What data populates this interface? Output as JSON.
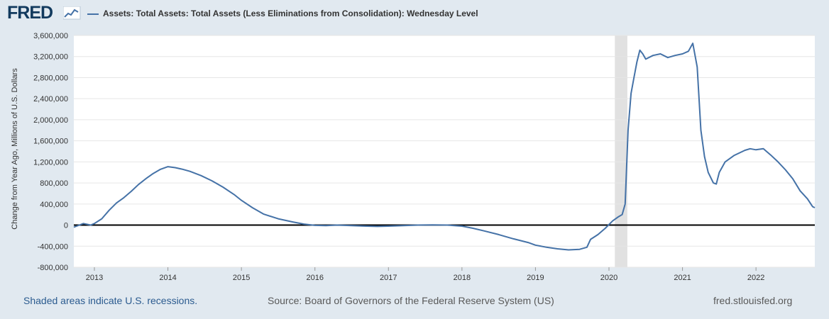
{
  "header": {
    "logo_text": "FRED",
    "logo_icon": "trend-line-icon",
    "legend_label": "Assets: Total Assets: Total Assets (Less Eliminations from Consolidation): Wednesday Level"
  },
  "footer": {
    "recession_note": "Shaded areas indicate U.S. recessions.",
    "source": "Source: Board of Governors of the Federal Reserve System (US)",
    "url": "fred.stlouisfed.org"
  },
  "colors": {
    "series": "#4572a7",
    "background": "#e1e9f0",
    "plot": "#ffffff",
    "recession": "#e1e1e1",
    "gridline": "#e6e6e6"
  },
  "chart_data": {
    "type": "line",
    "title": "Assets: Total Assets: Total Assets (Less Eliminations from Consolidation): Wednesday Level",
    "ylabel": "Change from Year Ago, Millions of U.S. Dollars",
    "xlabel": "",
    "xlim": [
      2012.72,
      2022.8
    ],
    "ylim": [
      -800000,
      3600000
    ],
    "yticks": [
      -800000,
      -400000,
      0,
      400000,
      800000,
      1200000,
      1600000,
      2000000,
      2400000,
      2800000,
      3200000,
      3600000
    ],
    "ytick_labels": [
      "-800,000",
      "-400,000",
      "0",
      "400,000",
      "800,000",
      "1,200,000",
      "1,600,000",
      "2,000,000",
      "2,400,000",
      "2,800,000",
      "3,200,000",
      "3,600,000"
    ],
    "xticks": [
      2013,
      2014,
      2015,
      2016,
      2017,
      2018,
      2019,
      2020,
      2021,
      2022
    ],
    "xtick_labels": [
      "2013",
      "2014",
      "2015",
      "2016",
      "2017",
      "2018",
      "2019",
      "2020",
      "2021",
      "2022"
    ],
    "recessions": [
      [
        2020.08,
        2020.25
      ]
    ],
    "zero_line": 0,
    "series": [
      {
        "name": "Assets: Total Assets: Total Assets (Less Eliminations from Consolidation): Wednesday Level",
        "points": [
          [
            2012.72,
            -40000
          ],
          [
            2012.85,
            30000
          ],
          [
            2012.95,
            0
          ],
          [
            2013.0,
            30000
          ],
          [
            2013.1,
            120000
          ],
          [
            2013.2,
            280000
          ],
          [
            2013.3,
            420000
          ],
          [
            2013.4,
            520000
          ],
          [
            2013.5,
            640000
          ],
          [
            2013.6,
            770000
          ],
          [
            2013.7,
            880000
          ],
          [
            2013.8,
            980000
          ],
          [
            2013.9,
            1060000
          ],
          [
            2014.0,
            1110000
          ],
          [
            2014.1,
            1090000
          ],
          [
            2014.2,
            1060000
          ],
          [
            2014.3,
            1020000
          ],
          [
            2014.45,
            940000
          ],
          [
            2014.6,
            840000
          ],
          [
            2014.75,
            720000
          ],
          [
            2014.9,
            580000
          ],
          [
            2015.0,
            470000
          ],
          [
            2015.15,
            330000
          ],
          [
            2015.3,
            210000
          ],
          [
            2015.5,
            120000
          ],
          [
            2015.7,
            60000
          ],
          [
            2015.85,
            20000
          ],
          [
            2016.0,
            -5000
          ],
          [
            2016.15,
            -10000
          ],
          [
            2016.3,
            0
          ],
          [
            2016.5,
            -10000
          ],
          [
            2016.7,
            -20000
          ],
          [
            2016.85,
            -25000
          ],
          [
            2017.0,
            -20000
          ],
          [
            2017.2,
            -10000
          ],
          [
            2017.4,
            0
          ],
          [
            2017.6,
            5000
          ],
          [
            2017.8,
            0
          ],
          [
            2018.0,
            -20000
          ],
          [
            2018.15,
            -60000
          ],
          [
            2018.3,
            -110000
          ],
          [
            2018.5,
            -180000
          ],
          [
            2018.7,
            -260000
          ],
          [
            2018.9,
            -330000
          ],
          [
            2019.0,
            -380000
          ],
          [
            2019.15,
            -420000
          ],
          [
            2019.3,
            -450000
          ],
          [
            2019.45,
            -470000
          ],
          [
            2019.6,
            -460000
          ],
          [
            2019.7,
            -420000
          ],
          [
            2019.75,
            -270000
          ],
          [
            2019.85,
            -180000
          ],
          [
            2019.95,
            -60000
          ],
          [
            2020.05,
            80000
          ],
          [
            2020.12,
            150000
          ],
          [
            2020.18,
            200000
          ],
          [
            2020.22,
            400000
          ],
          [
            2020.26,
            1800000
          ],
          [
            2020.3,
            2500000
          ],
          [
            2020.34,
            2800000
          ],
          [
            2020.38,
            3100000
          ],
          [
            2020.42,
            3320000
          ],
          [
            2020.46,
            3250000
          ],
          [
            2020.5,
            3150000
          ],
          [
            2020.6,
            3220000
          ],
          [
            2020.7,
            3250000
          ],
          [
            2020.8,
            3180000
          ],
          [
            2020.9,
            3220000
          ],
          [
            2021.0,
            3250000
          ],
          [
            2021.08,
            3300000
          ],
          [
            2021.14,
            3450000
          ],
          [
            2021.2,
            3000000
          ],
          [
            2021.25,
            1800000
          ],
          [
            2021.3,
            1300000
          ],
          [
            2021.35,
            1000000
          ],
          [
            2021.42,
            800000
          ],
          [
            2021.46,
            780000
          ],
          [
            2021.5,
            1000000
          ],
          [
            2021.58,
            1200000
          ],
          [
            2021.7,
            1320000
          ],
          [
            2021.85,
            1420000
          ],
          [
            2021.92,
            1450000
          ],
          [
            2022.0,
            1430000
          ],
          [
            2022.1,
            1450000
          ],
          [
            2022.2,
            1330000
          ],
          [
            2022.3,
            1200000
          ],
          [
            2022.4,
            1050000
          ],
          [
            2022.5,
            880000
          ],
          [
            2022.6,
            650000
          ],
          [
            2022.7,
            500000
          ],
          [
            2022.77,
            350000
          ],
          [
            2022.8,
            330000
          ]
        ]
      }
    ]
  }
}
